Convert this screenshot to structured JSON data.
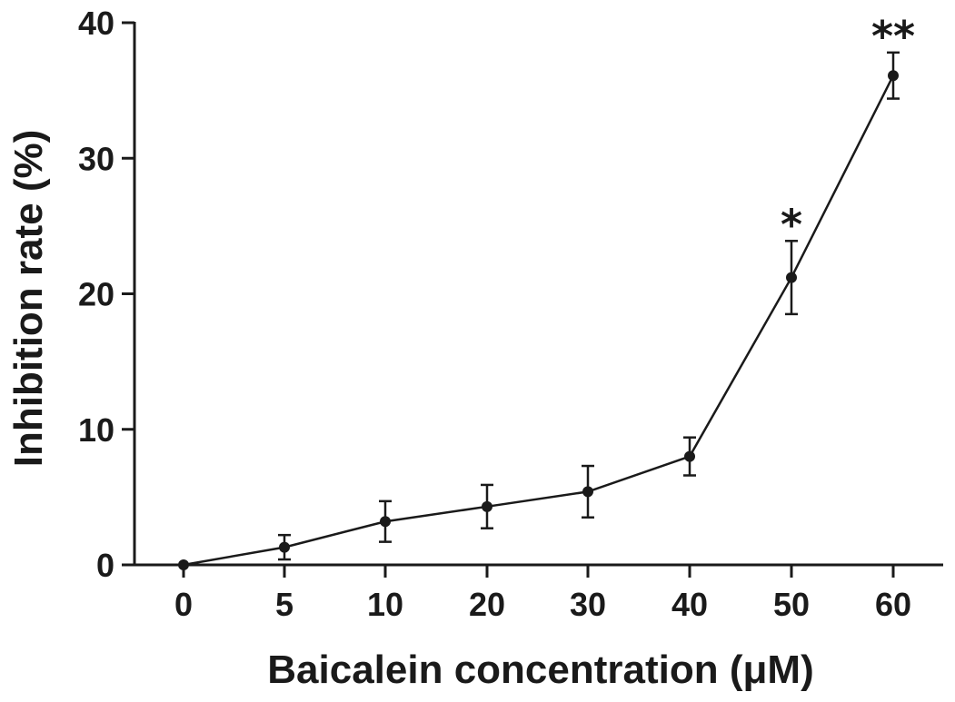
{
  "chart_data": {
    "type": "line",
    "title": "",
    "xlabel": "Baicalein concentration (μM)",
    "ylabel": "Inhibition rate (%)",
    "categories": [
      "0",
      "5",
      "10",
      "20",
      "30",
      "40",
      "50",
      "60"
    ],
    "values": [
      0,
      1.3,
      3.2,
      4.3,
      5.4,
      8.0,
      21.2,
      36.1
    ],
    "error": [
      0,
      0.9,
      1.5,
      1.6,
      1.9,
      1.4,
      2.7,
      1.7
    ],
    "significance": [
      "",
      "",
      "",
      "",
      "",
      "",
      "*",
      "**"
    ],
    "ylim": [
      0,
      40
    ],
    "yticks": [
      0,
      10,
      20,
      30,
      40
    ],
    "grid": false,
    "color": "#1a1a1a"
  }
}
